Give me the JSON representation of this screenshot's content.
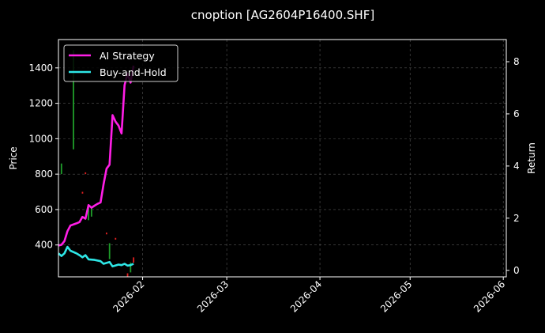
{
  "chart_data": {
    "type": "line",
    "title": "cnoption [AG2604P16400.SHF]",
    "xlabel": "",
    "ylabel_left": "Price",
    "ylabel_right": "Return",
    "x_axis": {
      "type": "date",
      "range": [
        "2026-01-04",
        "2026-06-02"
      ],
      "tick_values": [
        "2026-02-01",
        "2026-03-01",
        "2026-04-01",
        "2026-05-01",
        "2026-06-01"
      ],
      "tick_labels": [
        "2026-02",
        "2026-03",
        "2026-04",
        "2026-05",
        "2026-06"
      ]
    },
    "y_left": {
      "range": [
        220,
        1560
      ],
      "ticks": [
        400,
        600,
        800,
        1000,
        1200,
        1400
      ],
      "tick_labels": [
        "400",
        "600",
        "800",
        "1000",
        "1200",
        "1400"
      ]
    },
    "y_right": {
      "range": [
        -0.25,
        8.85
      ],
      "ticks": [
        0,
        2,
        4,
        6,
        8
      ],
      "tick_labels": [
        "0",
        "2",
        "4",
        "6",
        "8"
      ]
    },
    "grid": true,
    "legend_position": "top-left",
    "candles": {
      "up_color": "#1f9e2a",
      "down_color": "#e02020",
      "items": [
        {
          "date": "2026-01-05",
          "low": 800,
          "high": 860,
          "dir": "up"
        },
        {
          "date": "2026-01-09",
          "low": 940,
          "high": 1500,
          "dir": "up"
        },
        {
          "date": "2026-01-12",
          "low": 690,
          "high": 700,
          "dir": "down"
        },
        {
          "date": "2026-01-13",
          "low": 800,
          "high": 810,
          "dir": "down"
        },
        {
          "date": "2026-01-14",
          "low": 540,
          "high": 620,
          "dir": "up"
        },
        {
          "date": "2026-01-15",
          "low": 560,
          "high": 610,
          "dir": "up"
        },
        {
          "date": "2026-01-20",
          "low": 460,
          "high": 470,
          "dir": "down"
        },
        {
          "date": "2026-01-21",
          "low": 320,
          "high": 410,
          "dir": "up"
        },
        {
          "date": "2026-01-23",
          "low": 430,
          "high": 440,
          "dir": "down"
        },
        {
          "date": "2026-01-27",
          "low": 222,
          "high": 240,
          "dir": "down"
        },
        {
          "date": "2026-01-28",
          "low": 245,
          "high": 300,
          "dir": "up"
        },
        {
          "date": "2026-01-29",
          "low": 300,
          "high": 330,
          "dir": "down"
        }
      ]
    },
    "series": [
      {
        "name": "AI Strategy",
        "color": "#ff1ee6",
        "axis": "right",
        "points": [
          [
            "2026-01-04",
            0.95
          ],
          [
            "2026-01-05",
            0.98
          ],
          [
            "2026-01-06",
            1.12
          ],
          [
            "2026-01-07",
            1.5
          ],
          [
            "2026-01-08",
            1.72
          ],
          [
            "2026-01-10",
            1.8
          ],
          [
            "2026-01-11",
            1.85
          ],
          [
            "2026-01-12",
            2.05
          ],
          [
            "2026-01-13",
            1.98
          ],
          [
            "2026-01-14",
            2.5
          ],
          [
            "2026-01-15",
            2.4
          ],
          [
            "2026-01-16",
            2.48
          ],
          [
            "2026-01-17",
            2.55
          ],
          [
            "2026-01-18",
            2.6
          ],
          [
            "2026-01-19",
            3.3
          ],
          [
            "2026-01-20",
            3.9
          ],
          [
            "2026-01-21",
            4.05
          ],
          [
            "2026-01-22",
            5.95
          ],
          [
            "2026-01-23",
            5.7
          ],
          [
            "2026-01-24",
            5.55
          ],
          [
            "2026-01-25",
            5.25
          ],
          [
            "2026-01-26",
            7.1
          ],
          [
            "2026-01-27",
            7.55
          ],
          [
            "2026-01-28",
            7.2
          ],
          [
            "2026-01-29",
            7.85
          ]
        ]
      },
      {
        "name": "Buy-and-Hold",
        "color": "#2ee6e6",
        "axis": "right",
        "points": [
          [
            "2026-01-04",
            0.65
          ],
          [
            "2026-01-05",
            0.55
          ],
          [
            "2026-01-06",
            0.65
          ],
          [
            "2026-01-07",
            0.9
          ],
          [
            "2026-01-08",
            0.75
          ],
          [
            "2026-01-10",
            0.65
          ],
          [
            "2026-01-11",
            0.58
          ],
          [
            "2026-01-12",
            0.5
          ],
          [
            "2026-01-13",
            0.58
          ],
          [
            "2026-01-14",
            0.42
          ],
          [
            "2026-01-16",
            0.4
          ],
          [
            "2026-01-18",
            0.35
          ],
          [
            "2026-01-19",
            0.25
          ],
          [
            "2026-01-21",
            0.32
          ],
          [
            "2026-01-22",
            0.15
          ],
          [
            "2026-01-24",
            0.22
          ],
          [
            "2026-01-25",
            0.2
          ],
          [
            "2026-01-26",
            0.25
          ],
          [
            "2026-01-27",
            0.18
          ],
          [
            "2026-01-28",
            0.2
          ],
          [
            "2026-01-29",
            0.25
          ]
        ]
      }
    ]
  }
}
